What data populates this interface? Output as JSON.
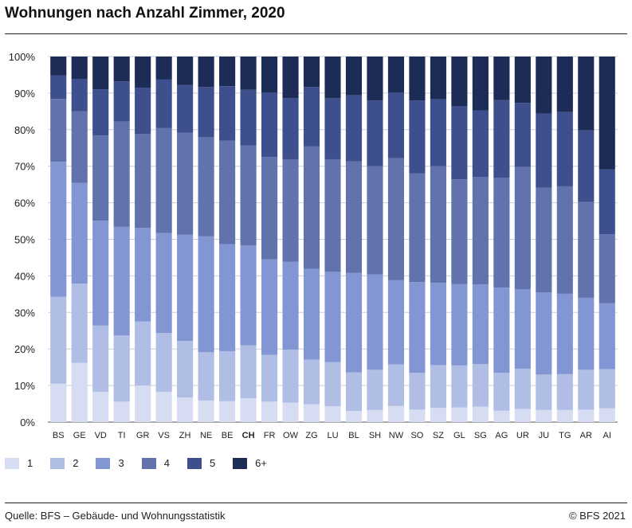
{
  "header": {
    "title": "Wohnungen nach Anzahl Zimmer, 2020"
  },
  "footer": {
    "source": "Quelle: BFS – Gebäude- und Wohnungsstatistik",
    "copyright": "© BFS 2021"
  },
  "chart_data": {
    "type": "bar",
    "stacked": true,
    "title": "Wohnungen nach Anzahl Zimmer, 2020",
    "ylim": [
      0,
      100
    ],
    "yticks": [
      "0%",
      "10%",
      "20%",
      "30%",
      "40%",
      "50%",
      "60%",
      "70%",
      "80%",
      "90%",
      "100%"
    ],
    "grid": true,
    "legend_position": "bottom-left",
    "highlight_category": "CH",
    "categories": [
      "BS",
      "GE",
      "VD",
      "TI",
      "GR",
      "VS",
      "ZH",
      "NE",
      "BE",
      "CH",
      "FR",
      "OW",
      "ZG",
      "LU",
      "BL",
      "SH",
      "NW",
      "SO",
      "SZ",
      "GL",
      "SG",
      "AG",
      "UR",
      "JU",
      "TG",
      "AR",
      "AI"
    ],
    "series": [
      {
        "name": "1",
        "color": "#d6dcf1",
        "values": [
          10.5,
          16.2,
          8.3,
          5.6,
          10.0,
          8.3,
          6.7,
          5.9,
          5.7,
          6.5,
          5.6,
          5.3,
          4.9,
          4.3,
          3.0,
          3.3,
          4.4,
          3.4,
          3.9,
          4.0,
          4.2,
          3.1,
          3.6,
          3.3,
          3.3,
          3.4,
          3.8
        ]
      },
      {
        "name": "2",
        "color": "#b0bde4",
        "values": [
          23.8,
          21.7,
          18.1,
          18.1,
          17.5,
          16.1,
          15.5,
          13.2,
          13.7,
          14.5,
          12.8,
          14.5,
          12.2,
          12.1,
          10.6,
          11.0,
          11.4,
          10.1,
          11.7,
          11.5,
          11.7,
          10.4,
          11.0,
          9.7,
          9.8,
          10.9,
          10.7
        ]
      },
      {
        "name": "3",
        "color": "#8396d4",
        "values": [
          36.9,
          27.5,
          28.7,
          29.7,
          25.6,
          27.3,
          29.1,
          31.7,
          29.3,
          27.3,
          26.1,
          24.1,
          24.8,
          24.7,
          27.2,
          26.1,
          23.0,
          24.8,
          22.5,
          22.3,
          21.8,
          23.3,
          21.7,
          22.5,
          22.0,
          19.7,
          18.0
        ]
      },
      {
        "name": "4",
        "color": "#6172ad",
        "values": [
          17.2,
          19.6,
          23.3,
          28.8,
          25.7,
          28.8,
          27.9,
          27.2,
          28.3,
          27.4,
          28.0,
          28.0,
          33.5,
          30.8,
          30.5,
          29.6,
          33.4,
          29.7,
          31.9,
          28.6,
          29.4,
          30.0,
          33.5,
          28.6,
          29.4,
          26.2,
          18.9
        ]
      },
      {
        "name": "5",
        "color": "#3e4f8d",
        "values": [
          6.4,
          8.9,
          12.6,
          11.0,
          12.7,
          13.2,
          13.0,
          13.7,
          14.9,
          15.2,
          17.7,
          16.7,
          16.3,
          16.7,
          18.1,
          18.0,
          18.0,
          20.0,
          18.3,
          20.0,
          18.2,
          21.3,
          17.5,
          20.3,
          20.3,
          19.6,
          17.7
        ]
      },
      {
        "name": "6+",
        "color": "#1d2b57",
        "values": [
          5.2,
          6.1,
          9.0,
          6.8,
          8.5,
          6.3,
          7.8,
          8.3,
          8.1,
          9.1,
          9.8,
          11.4,
          8.3,
          11.4,
          10.6,
          12.0,
          9.8,
          12.0,
          11.7,
          13.6,
          14.7,
          11.9,
          12.7,
          15.6,
          15.2,
          20.2,
          30.9
        ]
      }
    ]
  }
}
